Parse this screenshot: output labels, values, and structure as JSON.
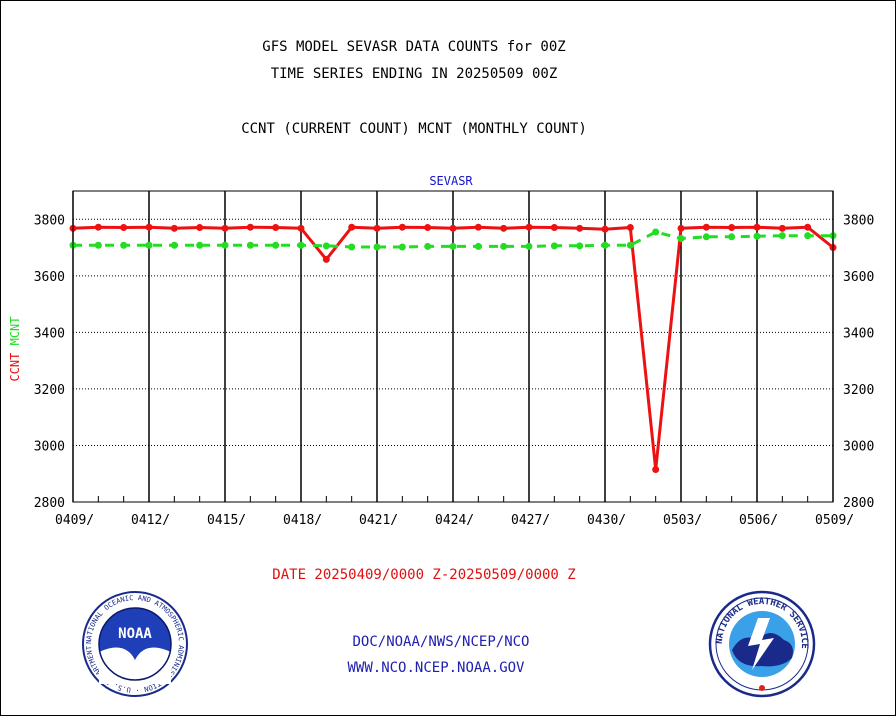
{
  "header": {
    "title_line1": "GFS MODEL SEVASR DATA COUNTS for 00Z",
    "title_line2": "TIME SERIES ENDING IN 20250509 00Z",
    "title_line3": "CCNT (CURRENT COUNT) MCNT (MONTHLY COUNT)"
  },
  "footer": {
    "date_range": "DATE 20250409/0000 Z-20250509/0000 Z",
    "org_line": "DOC/NOAA/NWS/NCEP/NCO",
    "url_line": "WWW.NCO.NCEP.NOAA.GOV"
  },
  "logos": {
    "noaa": {
      "center_text": "NOAA",
      "ring_text": "NATIONAL OCEANIC AND ATMOSPHERIC ADMINISTRATION · U.S. DEPARTMENT OF COMMERCE"
    },
    "nws": {
      "ring_text": "NATIONAL WEATHER SERVICE"
    }
  },
  "colors": {
    "ccnt": "#ee1111",
    "mcnt": "#22dd22",
    "subtitle": "#1414c8",
    "footer": "#2020b0"
  },
  "chart_data": {
    "type": "line",
    "title": "SEVASR",
    "ylabel_parts": [
      "CCNT",
      "MCNT"
    ],
    "ylim": [
      2800,
      3900
    ],
    "yticks": [
      2800,
      3000,
      3200,
      3400,
      3600,
      3800
    ],
    "xlim": [
      0,
      30
    ],
    "xtick_labels": [
      "0409/",
      "0412/",
      "0415/",
      "0418/",
      "0421/",
      "0424/",
      "0427/",
      "0430/",
      "0503/",
      "0506/",
      "0509/"
    ],
    "xtick_positions": [
      0,
      3,
      6,
      9,
      12,
      15,
      18,
      21,
      24,
      27,
      30
    ],
    "grid": true,
    "series": [
      {
        "name": "CCNT",
        "style": "solid",
        "x": [
          0,
          1,
          2,
          3,
          4,
          5,
          6,
          7,
          8,
          9,
          10,
          11,
          12,
          13,
          14,
          15,
          16,
          17,
          18,
          19,
          20,
          21,
          22,
          23,
          24,
          25,
          26,
          27,
          28,
          29,
          30
        ],
        "values": [
          3768,
          3772,
          3771,
          3772,
          3768,
          3771,
          3768,
          3772,
          3771,
          3768,
          3658,
          3772,
          3768,
          3772,
          3771,
          3768,
          3772,
          3768,
          3772,
          3771,
          3768,
          3765,
          3771,
          2915,
          3768,
          3772,
          3771,
          3772,
          3768,
          3772,
          3700
        ]
      },
      {
        "name": "MCNT",
        "style": "dashed",
        "x": [
          0,
          1,
          2,
          3,
          4,
          5,
          6,
          7,
          8,
          9,
          10,
          11,
          12,
          13,
          14,
          15,
          16,
          17,
          18,
          19,
          20,
          21,
          22,
          23,
          24,
          25,
          26,
          27,
          28,
          29,
          30
        ],
        "values": [
          3708,
          3708,
          3708,
          3708,
          3708,
          3708,
          3708,
          3708,
          3708,
          3708,
          3706,
          3702,
          3702,
          3702,
          3704,
          3704,
          3704,
          3704,
          3704,
          3706,
          3706,
          3708,
          3708,
          3755,
          3732,
          3738,
          3738,
          3740,
          3742,
          3742,
          3742
        ]
      }
    ]
  }
}
